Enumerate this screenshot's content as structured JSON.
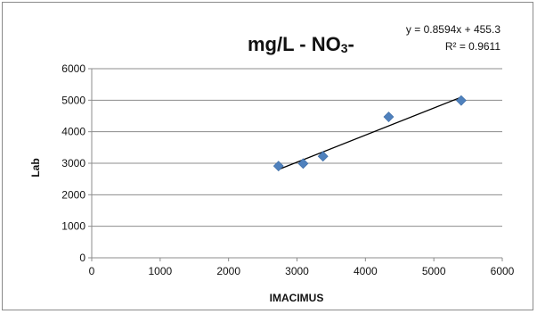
{
  "chart_data": {
    "type": "scatter",
    "title": "mg/L  - NO3-",
    "xlabel": "IMACIMUS",
    "ylabel": "Lab",
    "xlim": [
      0,
      6000
    ],
    "ylim": [
      0,
      6000
    ],
    "xticks": [
      "0",
      "1000",
      "2000",
      "3000",
      "4000",
      "5000",
      "6000"
    ],
    "yticks": [
      "0",
      "1000",
      "2000",
      "3000",
      "4000",
      "5000",
      "6000"
    ],
    "grid": "horizontal",
    "legend": "none",
    "series": [
      {
        "marker": "diamond",
        "color": "#4f81bd",
        "x": [
          2730,
          3090,
          3380,
          4340,
          5400
        ],
        "y": [
          2910,
          2990,
          3220,
          4470,
          4990
        ]
      }
    ],
    "trendline": {
      "type": "linear",
      "slope": 0.8594,
      "intercept": 455.3,
      "x_range": [
        2730,
        5400
      ],
      "color": "#000000",
      "equation": "y = 0.8594x + 455.3",
      "r_squared": "R² = 0.9611"
    }
  }
}
